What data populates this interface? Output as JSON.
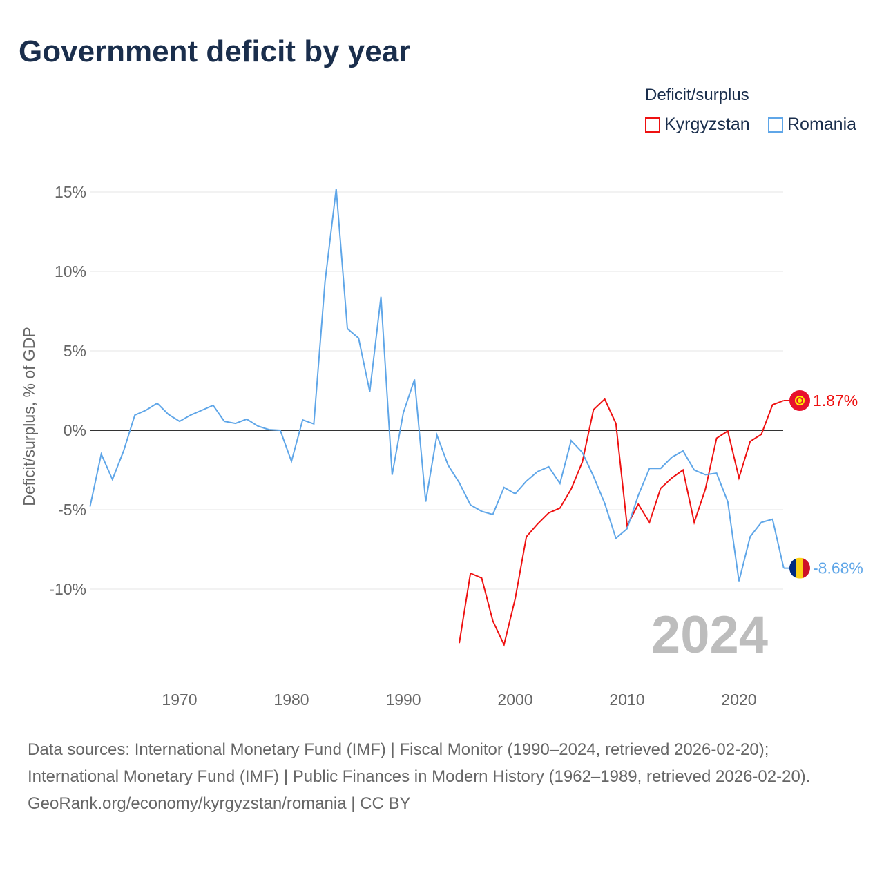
{
  "title": "Government deficit by year",
  "legend": {
    "title": "Deficit/surplus",
    "items": [
      {
        "name": "Kyrgyzstan",
        "color": "#ee1111"
      },
      {
        "name": "Romania",
        "color": "#5fa6e8"
      }
    ]
  },
  "year_label": "2024",
  "sources": {
    "line1": "Data sources: International Monetary Fund (IMF) | Fiscal Monitor (1990–2024, retrieved 2026-02-20); International Monetary Fund (IMF) | Public Finances in Modern History (1962–1989, retrieved 2026-02-20).",
    "line2": "GeoRank.org/economy/kyrgyzstan/romania | CC BY"
  },
  "chart_data": {
    "type": "line",
    "title": "Government deficit by year",
    "xlabel": "",
    "ylabel": "Deficit/surplus, % of GDP",
    "xlim": [
      1962,
      2024
    ],
    "ylim": [
      -15.3,
      15.5
    ],
    "xticks": [
      1970,
      1980,
      1990,
      2000,
      2010,
      2020
    ],
    "yticks": [
      {
        "v": 15,
        "label": "15%"
      },
      {
        "v": 10,
        "label": "10%"
      },
      {
        "v": 5,
        "label": "5%"
      },
      {
        "v": 0,
        "label": "0%"
      },
      {
        "v": -5,
        "label": "-5%"
      },
      {
        "v": -10,
        "label": "-10%"
      }
    ],
    "series": [
      {
        "name": "Kyrgyzstan",
        "color": "#ee1111",
        "end_label": "1.87%",
        "x": [
          1995,
          1996,
          1997,
          1998,
          1999,
          2000,
          2001,
          2002,
          2003,
          2004,
          2005,
          2006,
          2007,
          2008,
          2009,
          2010,
          2011,
          2012,
          2013,
          2014,
          2015,
          2016,
          2017,
          2018,
          2019,
          2020,
          2021,
          2022,
          2023,
          2024
        ],
        "y": [
          -13.4,
          -9.0,
          -9.3,
          -12.0,
          -13.5,
          -10.6,
          -6.7,
          -5.9,
          -5.2,
          -4.9,
          -3.7,
          -2.0,
          1.3,
          1.96,
          0.43,
          -6.0,
          -4.65,
          -5.8,
          -3.65,
          -3.0,
          -2.5,
          -5.8,
          -3.7,
          -0.5,
          -0.05,
          -3.0,
          -0.7,
          -0.26,
          1.6,
          1.87
        ]
      },
      {
        "name": "Romania",
        "color": "#5fa6e8",
        "end_label": "-8.68%",
        "x": [
          1962,
          1963,
          1964,
          1965,
          1966,
          1967,
          1968,
          1969,
          1970,
          1971,
          1972,
          1973,
          1974,
          1975,
          1976,
          1977,
          1978,
          1979,
          1980,
          1981,
          1982,
          1983,
          1984,
          1985,
          1986,
          1987,
          1988,
          1989,
          1990,
          1991,
          1992,
          1993,
          1994,
          1995,
          1996,
          1997,
          1998,
          1999,
          2000,
          2001,
          2002,
          2003,
          2004,
          2005,
          2006,
          2007,
          2008,
          2009,
          2010,
          2011,
          2012,
          2013,
          2014,
          2015,
          2016,
          2017,
          2018,
          2019,
          2020,
          2021,
          2022,
          2023,
          2024
        ],
        "y": [
          -4.8,
          -1.5,
          -3.1,
          -1.3,
          0.95,
          1.26,
          1.7,
          1.0,
          0.56,
          0.96,
          1.26,
          1.57,
          0.56,
          0.43,
          0.7,
          0.26,
          0.04,
          0.0,
          -1.96,
          0.65,
          0.4,
          9.35,
          15.2,
          6.4,
          5.8,
          2.43,
          8.4,
          -2.8,
          1.1,
          3.2,
          -4.5,
          -0.3,
          -2.2,
          -3.3,
          -4.7,
          -5.1,
          -5.3,
          -3.6,
          -4.0,
          -3.2,
          -2.6,
          -2.3,
          -3.35,
          -0.65,
          -1.4,
          -2.9,
          -4.6,
          -6.8,
          -6.2,
          -4.1,
          -2.4,
          -2.4,
          -1.7,
          -1.3,
          -2.5,
          -2.8,
          -2.7,
          -4.5,
          -9.5,
          -6.7,
          -5.8,
          -5.6,
          -8.68
        ]
      }
    ],
    "grid": true,
    "legend_position": "top-right"
  }
}
